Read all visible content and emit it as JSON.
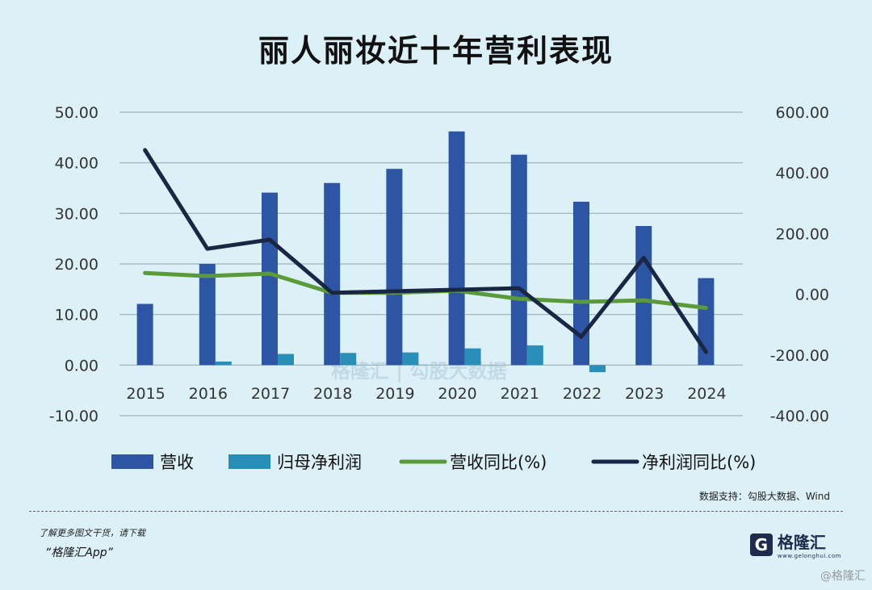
{
  "title": "丽人丽妆近十年营利表现",
  "source_note": "数据支持：勾股大数据、Wind",
  "footer": {
    "promo_text": "了解更多图文干货，请下载",
    "app_text": "“格隆汇App”",
    "logo_text": "格隆汇",
    "logo_subtext": "www.gelonghui.com",
    "corner_watermark": "@格隆汇",
    "center_watermark": "格隆汇 | 勾股大数据"
  },
  "colors": {
    "revenue": "#2e55a3",
    "net_profit": "#2a8fb8",
    "revenue_yoy": "#5a9a3a",
    "net_profit_yoy": "#1a2744",
    "background": "#dcf0f8",
    "grid": "#9bb0bb"
  },
  "chart_data": {
    "type": "bar",
    "categories": [
      "2015",
      "2016",
      "2017",
      "2018",
      "2019",
      "2020",
      "2021",
      "2022",
      "2023",
      "2024"
    ],
    "left_axis": {
      "ylim": [
        -10,
        50
      ],
      "ticks": [
        "50.00",
        "40.00",
        "30.00",
        "20.00",
        "10.00",
        "0.00",
        "-10.00"
      ]
    },
    "right_axis": {
      "ylim": [
        -400,
        600
      ],
      "ticks": [
        "600.00",
        "400.00",
        "200.00",
        "0.00",
        "-200.00",
        "-400.00"
      ]
    },
    "series": [
      {
        "name": "营收",
        "type": "bar",
        "axis": "left",
        "values": [
          12.1,
          20.0,
          34.1,
          36.0,
          38.8,
          46.2,
          41.6,
          32.3,
          27.5,
          17.2
        ]
      },
      {
        "name": "归母净利润",
        "type": "bar",
        "axis": "left",
        "values": [
          0.0,
          0.7,
          2.2,
          2.4,
          2.5,
          3.3,
          3.9,
          -1.4,
          0.0,
          0.0
        ]
      },
      {
        "name": "营收同比(%)",
        "type": "line",
        "axis": "right",
        "values": [
          70,
          60,
          68,
          5,
          5,
          12,
          -15,
          -25,
          -20,
          -45
        ]
      },
      {
        "name": "净利润同比(%)",
        "type": "line",
        "axis": "right",
        "values": [
          475,
          150,
          180,
          5,
          10,
          15,
          20,
          -140,
          120,
          -190
        ]
      }
    ],
    "grid": true,
    "legend_position": "bottom"
  }
}
